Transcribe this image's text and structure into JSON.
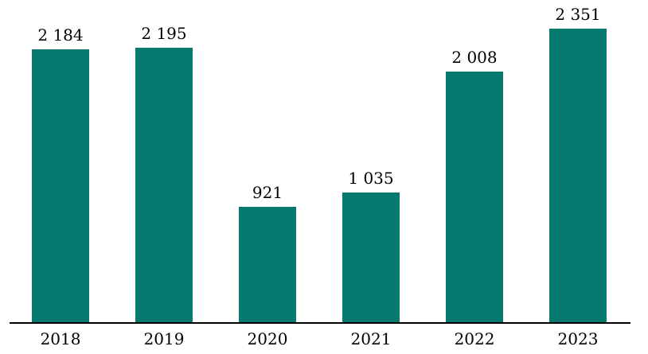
{
  "chart_data": {
    "type": "bar",
    "title": "",
    "xlabel": "",
    "ylabel": "",
    "categories": [
      "2018",
      "2019",
      "2020",
      "2021",
      "2022",
      "2023"
    ],
    "values": [
      2184,
      2195,
      921,
      1035,
      2008,
      2351
    ],
    "value_labels": [
      "2 184",
      "2 195",
      "921",
      "1 035",
      "2 008",
      "2 351"
    ],
    "ylim": [
      0,
      2500
    ],
    "grid": false,
    "legend": false,
    "bar_color": "#077a70",
    "label_color": "#000000",
    "axis_line_color": "#000000"
  }
}
